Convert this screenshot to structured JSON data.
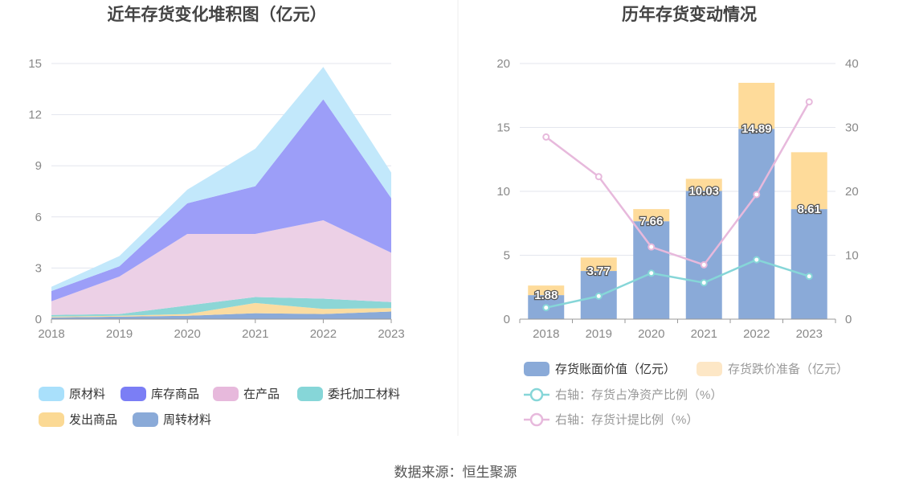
{
  "footer": "数据来源：恒生聚源",
  "chart_data": [
    {
      "type": "area",
      "stacked": true,
      "title": "近年存货变化堆积图（亿元）",
      "categories": [
        "2018",
        "2019",
        "2020",
        "2021",
        "2022",
        "2023"
      ],
      "ylim": [
        0,
        15
      ],
      "yticks": [
        0,
        3,
        6,
        9,
        12,
        15
      ],
      "grid": true,
      "legend_position": "bottom",
      "series": [
        {
          "name": "周转材料",
          "color": "#8aaad8",
          "values": [
            0.1,
            0.15,
            0.2,
            0.35,
            0.3,
            0.45
          ]
        },
        {
          "name": "发出商品",
          "color": "#fbdca1",
          "values": [
            0.05,
            0.05,
            0.1,
            0.6,
            0.3,
            0.2
          ]
        },
        {
          "name": "委托加工材料",
          "color": "#8cd6d6",
          "values": [
            0.1,
            0.1,
            0.5,
            0.35,
            0.6,
            0.35
          ]
        },
        {
          "name": "在产品",
          "color": "#ecd0e6",
          "values": [
            0.8,
            2.2,
            4.2,
            3.7,
            4.6,
            2.9
          ]
        },
        {
          "name": "库存商品",
          "color": "#9c9ef8",
          "values": [
            0.6,
            0.6,
            1.8,
            2.8,
            7.1,
            3.2
          ]
        },
        {
          "name": "原材料",
          "color": "#c2e8fb",
          "values": [
            0.25,
            0.6,
            0.8,
            2.2,
            1.9,
            1.5
          ]
        }
      ],
      "legend": [
        {
          "name": "原材料",
          "color": "#a9e0fb"
        },
        {
          "name": "库存商品",
          "color": "#7b7ef5"
        },
        {
          "name": "在产品",
          "color": "#e7b9dc"
        },
        {
          "name": "委托加工材料",
          "color": "#86d6d8"
        },
        {
          "name": "发出商品",
          "color": "#fbd994"
        },
        {
          "name": "周转材料",
          "color": "#8aaad8"
        }
      ]
    },
    {
      "type": "bar",
      "stacked": true,
      "title": "历年存货变动情况",
      "categories": [
        "2018",
        "2019",
        "2020",
        "2021",
        "2022",
        "2023"
      ],
      "ylim": [
        0,
        20
      ],
      "yticks": [
        0,
        5,
        10,
        15,
        20
      ],
      "y2lim": [
        0,
        40
      ],
      "y2ticks": [
        0,
        10,
        20,
        30,
        40
      ],
      "grid": true,
      "legend_position": "bottom",
      "series": [
        {
          "name": "存货账面价值（亿元）",
          "color": "#8aaad8",
          "values": [
            1.88,
            3.77,
            7.66,
            10.03,
            14.89,
            8.61
          ],
          "labels": [
            "1.88",
            "3.77",
            "7.66",
            "10.03",
            "14.89",
            "8.61"
          ]
        },
        {
          "name": "存货跌价准备（亿元）",
          "color": "#fedb9a",
          "legend_color": "#fde7c6",
          "values": [
            0.75,
            1.05,
            0.95,
            0.95,
            3.6,
            4.45
          ]
        }
      ],
      "line_series": [
        {
          "name": "右轴：存货占净资产比例（%）",
          "color": "#86d6d8",
          "axis": "right",
          "values": [
            1.8,
            3.6,
            7.2,
            5.7,
            9.3,
            6.7
          ]
        },
        {
          "name": "右轴：存货计提比例（%）",
          "color": "#e7b9dc",
          "axis": "right",
          "values": [
            28.5,
            22.3,
            11.3,
            8.5,
            19.5,
            34.0
          ]
        }
      ]
    }
  ]
}
